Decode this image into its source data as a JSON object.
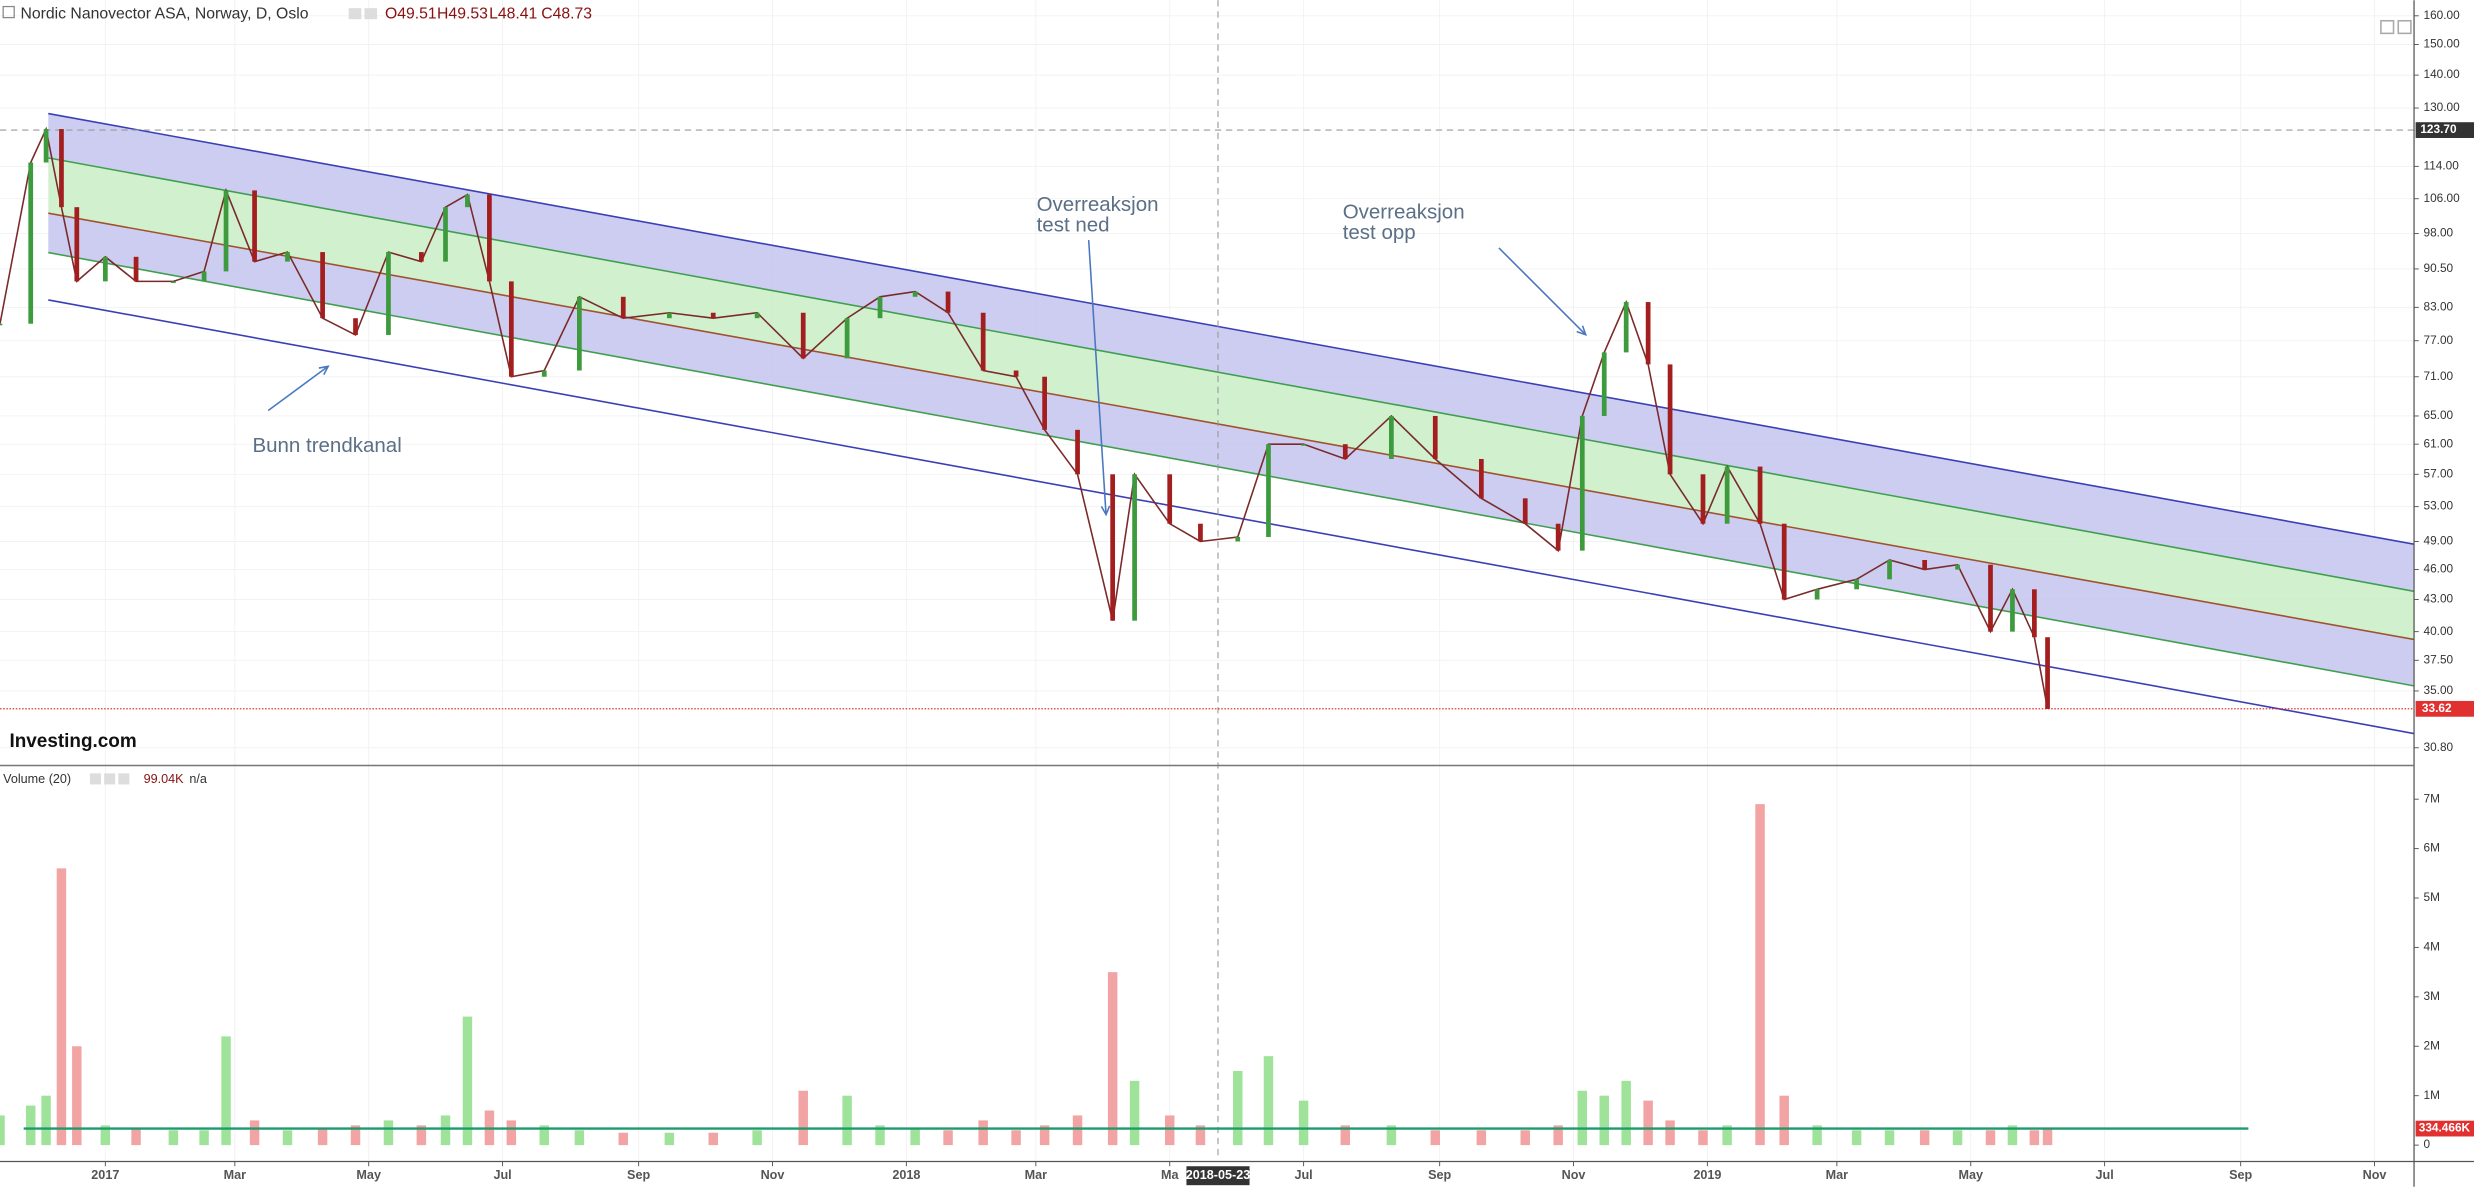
{
  "chart_data": [
    {
      "type": "line",
      "title": "Nordic Nanovector ASA, Norway, D, Oslo",
      "legend_values": [
        "O49.51",
        "H49.53",
        "L48.41",
        "C48.73"
      ],
      "log_scale": true,
      "grid": true,
      "up_color": "#3d9b3d",
      "down_color": "#a31f1f",
      "color": "#7a2a2a",
      "x": [
        "2016-11-14",
        "2016-11-28",
        "2016-12-05",
        "2016-12-12",
        "2016-12-19",
        "2017-01-01",
        "2017-01-15",
        "2017-02-01",
        "2017-02-15",
        "2017-02-25",
        "2017-03-10",
        "2017-03-25",
        "2017-04-10",
        "2017-04-25",
        "2017-05-10",
        "2017-05-25",
        "2017-06-05",
        "2017-06-15",
        "2017-06-25",
        "2017-07-05",
        "2017-07-20",
        "2017-08-05",
        "2017-08-25",
        "2017-09-15",
        "2017-10-05",
        "2017-10-25",
        "2017-11-15",
        "2017-12-05",
        "2017-12-20",
        "2018-01-05",
        "2018-01-20",
        "2018-02-05",
        "2018-02-20",
        "2018-03-05",
        "2018-03-20",
        "2018-04-05",
        "2018-04-15",
        "2018-05-01",
        "2018-05-15",
        "2018-06-01",
        "2018-06-15",
        "2018-07-01",
        "2018-07-20",
        "2018-08-10",
        "2018-08-30",
        "2018-09-20",
        "2018-10-10",
        "2018-10-25",
        "2018-11-05",
        "2018-11-15",
        "2018-11-25",
        "2018-12-05",
        "2018-12-15",
        "2018-12-30",
        "2019-01-10",
        "2019-01-25",
        "2019-02-05",
        "2019-02-20",
        "2019-03-10",
        "2019-03-25",
        "2019-04-10",
        "2019-04-25",
        "2019-05-10",
        "2019-05-20",
        "2019-05-30",
        "2019-06-05"
      ],
      "values": [
        80,
        115,
        124,
        104,
        88,
        93,
        88,
        88,
        90,
        108,
        92,
        94,
        81,
        78,
        94,
        92,
        104,
        107,
        88,
        71,
        72,
        85,
        81,
        82,
        81,
        82,
        74,
        81,
        85,
        86,
        82,
        72,
        71,
        63,
        57,
        41,
        57,
        51,
        49,
        49.5,
        61,
        61,
        59,
        65,
        59,
        54,
        51,
        48,
        65,
        75,
        84,
        73,
        57,
        51,
        58,
        51,
        43,
        44,
        45,
        47,
        46,
        46.5,
        40,
        44,
        39.5,
        33.62
      ],
      "xlim": [
        "2016-11-14",
        "2019-11-19"
      ],
      "xticks": [
        {
          "value": "2017-01-01",
          "label": "2017"
        },
        {
          "value": "2017-03-01",
          "label": "Mar"
        },
        {
          "value": "2017-05-01",
          "label": "May"
        },
        {
          "value": "2017-07-01",
          "label": "Jul"
        },
        {
          "value": "2017-09-01",
          "label": "Sep"
        },
        {
          "value": "2017-11-01",
          "label": "Nov"
        },
        {
          "value": "2018-01-01",
          "label": "2018"
        },
        {
          "value": "2018-03-01",
          "label": "Mar"
        },
        {
          "value": "2018-05-01",
          "label": "Ma"
        },
        {
          "value": "2018-07-01",
          "label": "Jul"
        },
        {
          "value": "2018-09-01",
          "label": "Sep"
        },
        {
          "value": "2018-11-01",
          "label": "Nov"
        },
        {
          "value": "2019-01-01",
          "label": "2019"
        },
        {
          "value": "2019-03-01",
          "label": "Mar"
        },
        {
          "value": "2019-05-01",
          "label": "May"
        },
        {
          "value": "2019-07-01",
          "label": "Jul"
        },
        {
          "value": "2019-09-01",
          "label": "Sep"
        },
        {
          "value": "2019-11-01",
          "label": "Nov"
        }
      ],
      "ylim": [
        29.7,
        165.7
      ],
      "yticks": [
        {
          "value": 160,
          "label": "160.00"
        },
        {
          "value": 150,
          "label": "150.00"
        },
        {
          "value": 140,
          "label": "140.00"
        },
        {
          "value": 130,
          "label": "130.00"
        },
        {
          "value": 114,
          "label": "114.00"
        },
        {
          "value": 106,
          "label": "106.00"
        },
        {
          "value": 98,
          "label": "98.00"
        },
        {
          "value": 90.5,
          "label": "90.50"
        },
        {
          "value": 83,
          "label": "83.00"
        },
        {
          "value": 77,
          "label": "77.00"
        },
        {
          "value": 71,
          "label": "71.00"
        },
        {
          "value": 65,
          "label": "65.00"
        },
        {
          "value": 61,
          "label": "61.00"
        },
        {
          "value": 57,
          "label": "57.00"
        },
        {
          "value": 53,
          "label": "53.00"
        },
        {
          "value": 49,
          "label": "49.00"
        },
        {
          "value": 46,
          "label": "46.00"
        },
        {
          "value": 43,
          "label": "43.00"
        },
        {
          "value": 40,
          "label": "40.00"
        },
        {
          "value": 37.5,
          "label": "37.50"
        },
        {
          "value": 35,
          "label": "35.00"
        },
        {
          "value": 30.8,
          "label": "30.80"
        }
      ],
      "crosshair": {
        "x": "2018-05-23",
        "y": {
          "value": 123.7,
          "label": "123.70"
        }
      },
      "last": {
        "value": 33.62,
        "label": "33.62"
      },
      "channel": {
        "start": "2016-12-06",
        "end": "2019-11-19",
        "lines": [
          {
            "start": 128.4,
            "end": 48.7,
            "color": "#3b3fb5"
          },
          {
            "start": 116.2,
            "end": 43.8,
            "color": "#3f9f4f"
          },
          {
            "start": 102.6,
            "end": 39.3,
            "color": "#a0522d"
          },
          {
            "start": 93.9,
            "end": 35.4,
            "color": "#3f9f4f"
          },
          {
            "start": 84.4,
            "end": 31.8,
            "color": "#3b3fb5"
          }
        ],
        "fills": [
          "#c3c4ee",
          "#c9efc6",
          "#c3c4ee"
        ]
      },
      "annotations": [
        [
          "Bunn trendkanal"
        ],
        [
          "Overreaksjon",
          "test ned"
        ],
        [
          "Overreaksjon",
          "test opp"
        ]
      ],
      "watermark": "Investing.com"
    },
    {
      "type": "bar",
      "title": "Volume (20)",
      "legend_values": [
        "99.04K",
        "n/a"
      ],
      "up_color": "#9fe39b",
      "down_color": "#f2a3a3",
      "x": [
        "2016-11-14",
        "2016-11-28",
        "2016-12-05",
        "2016-12-12",
        "2016-12-19",
        "2017-01-01",
        "2017-01-15",
        "2017-02-01",
        "2017-02-15",
        "2017-02-25",
        "2017-03-10",
        "2017-03-25",
        "2017-04-10",
        "2017-04-25",
        "2017-05-10",
        "2017-05-25",
        "2017-06-05",
        "2017-06-15",
        "2017-06-25",
        "2017-07-05",
        "2017-07-20",
        "2017-08-05",
        "2017-08-25",
        "2017-09-15",
        "2017-10-05",
        "2017-10-25",
        "2017-11-15",
        "2017-12-05",
        "2017-12-20",
        "2018-01-05",
        "2018-01-20",
        "2018-02-05",
        "2018-02-20",
        "2018-03-05",
        "2018-03-20",
        "2018-04-05",
        "2018-04-15",
        "2018-05-01",
        "2018-05-15",
        "2018-06-01",
        "2018-06-15",
        "2018-07-01",
        "2018-07-20",
        "2018-08-10",
        "2018-08-30",
        "2018-09-20",
        "2018-10-10",
        "2018-10-25",
        "2018-11-05",
        "2018-11-15",
        "2018-11-25",
        "2018-12-05",
        "2018-12-15",
        "2018-12-30",
        "2019-01-10",
        "2019-01-25",
        "2019-02-05",
        "2019-02-20",
        "2019-03-10",
        "2019-03-25",
        "2019-04-10",
        "2019-04-25",
        "2019-05-10",
        "2019-05-20",
        "2019-05-30",
        "2019-06-05"
      ],
      "values": [
        600000,
        800000,
        1000000,
        5600000,
        2000000,
        400000,
        350000,
        300000,
        300000,
        2200000,
        500000,
        300000,
        350000,
        400000,
        500000,
        400000,
        600000,
        2600000,
        700000,
        500000,
        400000,
        300000,
        250000,
        250000,
        250000,
        300000,
        1100000,
        1000000,
        400000,
        350000,
        300000,
        500000,
        300000,
        400000,
        600000,
        3500000,
        1300000,
        600000,
        400000,
        1500000,
        1800000,
        900000,
        400000,
        400000,
        300000,
        300000,
        300000,
        400000,
        1100000,
        1000000,
        1300000,
        900000,
        500000,
        300000,
        400000,
        6900000,
        1000000,
        400000,
        300000,
        300000,
        300000,
        300000,
        300000,
        400000,
        300000,
        350000
      ],
      "ylim": [
        -300000,
        7650000
      ],
      "yticks": [
        0,
        {
          "value": 1000000,
          "label": "1M"
        },
        {
          "value": 2000000,
          "label": "2M"
        },
        {
          "value": 3000000,
          "label": "3M"
        },
        {
          "value": 4000000,
          "label": "4M"
        },
        {
          "value": 5000000,
          "label": "5M"
        },
        {
          "value": 6000000,
          "label": "6M"
        },
        {
          "value": 7000000,
          "label": "7M"
        }
      ],
      "ma": {
        "value": 334466,
        "label": "334.466K",
        "color": "#1e9a6e"
      }
    }
  ]
}
